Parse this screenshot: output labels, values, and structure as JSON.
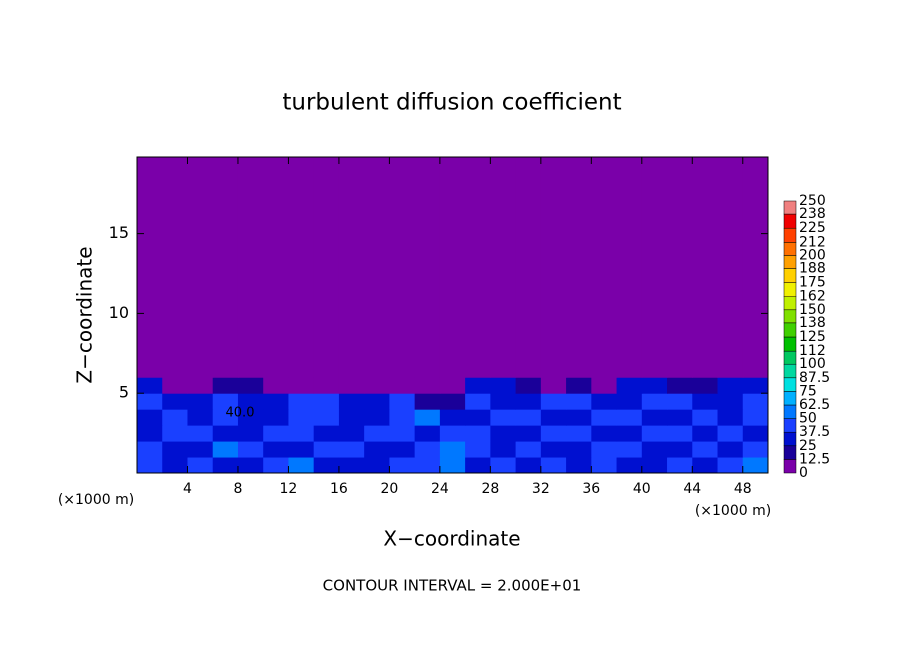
{
  "chart_data": {
    "type": "heatmap",
    "title": "turbulent diffusion coefficient",
    "x_label": "X−coordinate",
    "y_label": "Z−coordinate",
    "x_unit": "(×1000 m)",
    "y_unit": "(×1000 m)",
    "footer": "CONTOUR INTERVAL = 2.000E+01",
    "annotation": "40.0",
    "xlim": [
      0,
      50
    ],
    "ylim": [
      0,
      19.8
    ],
    "xticks": [
      4,
      8,
      12,
      16,
      20,
      24,
      28,
      32,
      36,
      40,
      44,
      48
    ],
    "yticks": [
      5,
      10,
      15
    ],
    "x_edges": [
      0,
      2,
      4,
      6,
      8,
      10,
      12,
      14,
      16,
      18,
      20,
      22,
      24,
      26,
      28,
      30,
      32,
      34,
      36,
      38,
      40,
      42,
      44,
      46,
      48,
      50
    ],
    "y_edges": [
      0,
      1,
      2,
      3,
      4,
      5,
      6,
      19.8
    ],
    "z": [
      [
        40,
        30,
        45,
        35,
        30,
        45,
        50,
        30,
        35,
        30,
        40,
        45,
        55,
        30,
        45,
        35,
        40,
        30,
        45,
        35,
        30,
        45,
        35,
        40,
        50
      ],
      [
        45,
        35,
        30,
        50,
        40,
        35,
        30,
        40,
        45,
        35,
        30,
        40,
        50,
        45,
        35,
        40,
        30,
        35,
        40,
        45,
        35,
        30,
        40,
        35,
        45
      ],
      [
        35,
        40,
        45,
        30,
        35,
        40,
        45,
        35,
        30,
        40,
        45,
        35,
        45,
        40,
        30,
        35,
        45,
        40,
        30,
        35,
        40,
        45,
        30,
        40,
        35
      ],
      [
        30,
        45,
        35,
        40,
        30,
        35,
        40,
        45,
        35,
        30,
        40,
        50,
        35,
        30,
        40,
        45,
        35,
        30,
        45,
        40,
        35,
        30,
        45,
        35,
        40
      ],
      [
        40,
        35,
        30,
        45,
        35,
        30,
        45,
        40,
        30,
        35,
        45,
        20,
        15,
        40,
        35,
        30,
        40,
        45,
        30,
        35,
        40,
        45,
        35,
        30,
        45
      ],
      [
        30,
        10,
        5,
        20,
        15,
        10,
        5,
        0,
        0,
        0,
        0,
        0,
        0,
        25,
        35,
        20,
        10,
        15,
        5,
        25,
        30,
        15,
        20,
        25,
        35
      ],
      [
        0,
        0,
        0,
        0,
        0,
        0,
        0,
        0,
        0,
        0,
        0,
        0,
        0,
        0,
        0,
        0,
        0,
        0,
        0,
        0,
        0,
        0,
        0,
        0,
        0
      ]
    ],
    "colorbar": {
      "levels": [
        0,
        12.5,
        25,
        37.5,
        50,
        62.5,
        75,
        87.5,
        100,
        112,
        125,
        138,
        150,
        162,
        175,
        188,
        200,
        212,
        225,
        238,
        250
      ],
      "colors": [
        "#7a00a9",
        "#1a0099",
        "#0010d0",
        "#1a40ff",
        "#0078ff",
        "#00b0ff",
        "#00e0e0",
        "#00d8a0",
        "#00c860",
        "#00c000",
        "#40d000",
        "#80e000",
        "#c0f000",
        "#f0f000",
        "#ffd000",
        "#ffa000",
        "#ff7000",
        "#ff4000",
        "#f00000",
        "#f08080"
      ]
    }
  }
}
